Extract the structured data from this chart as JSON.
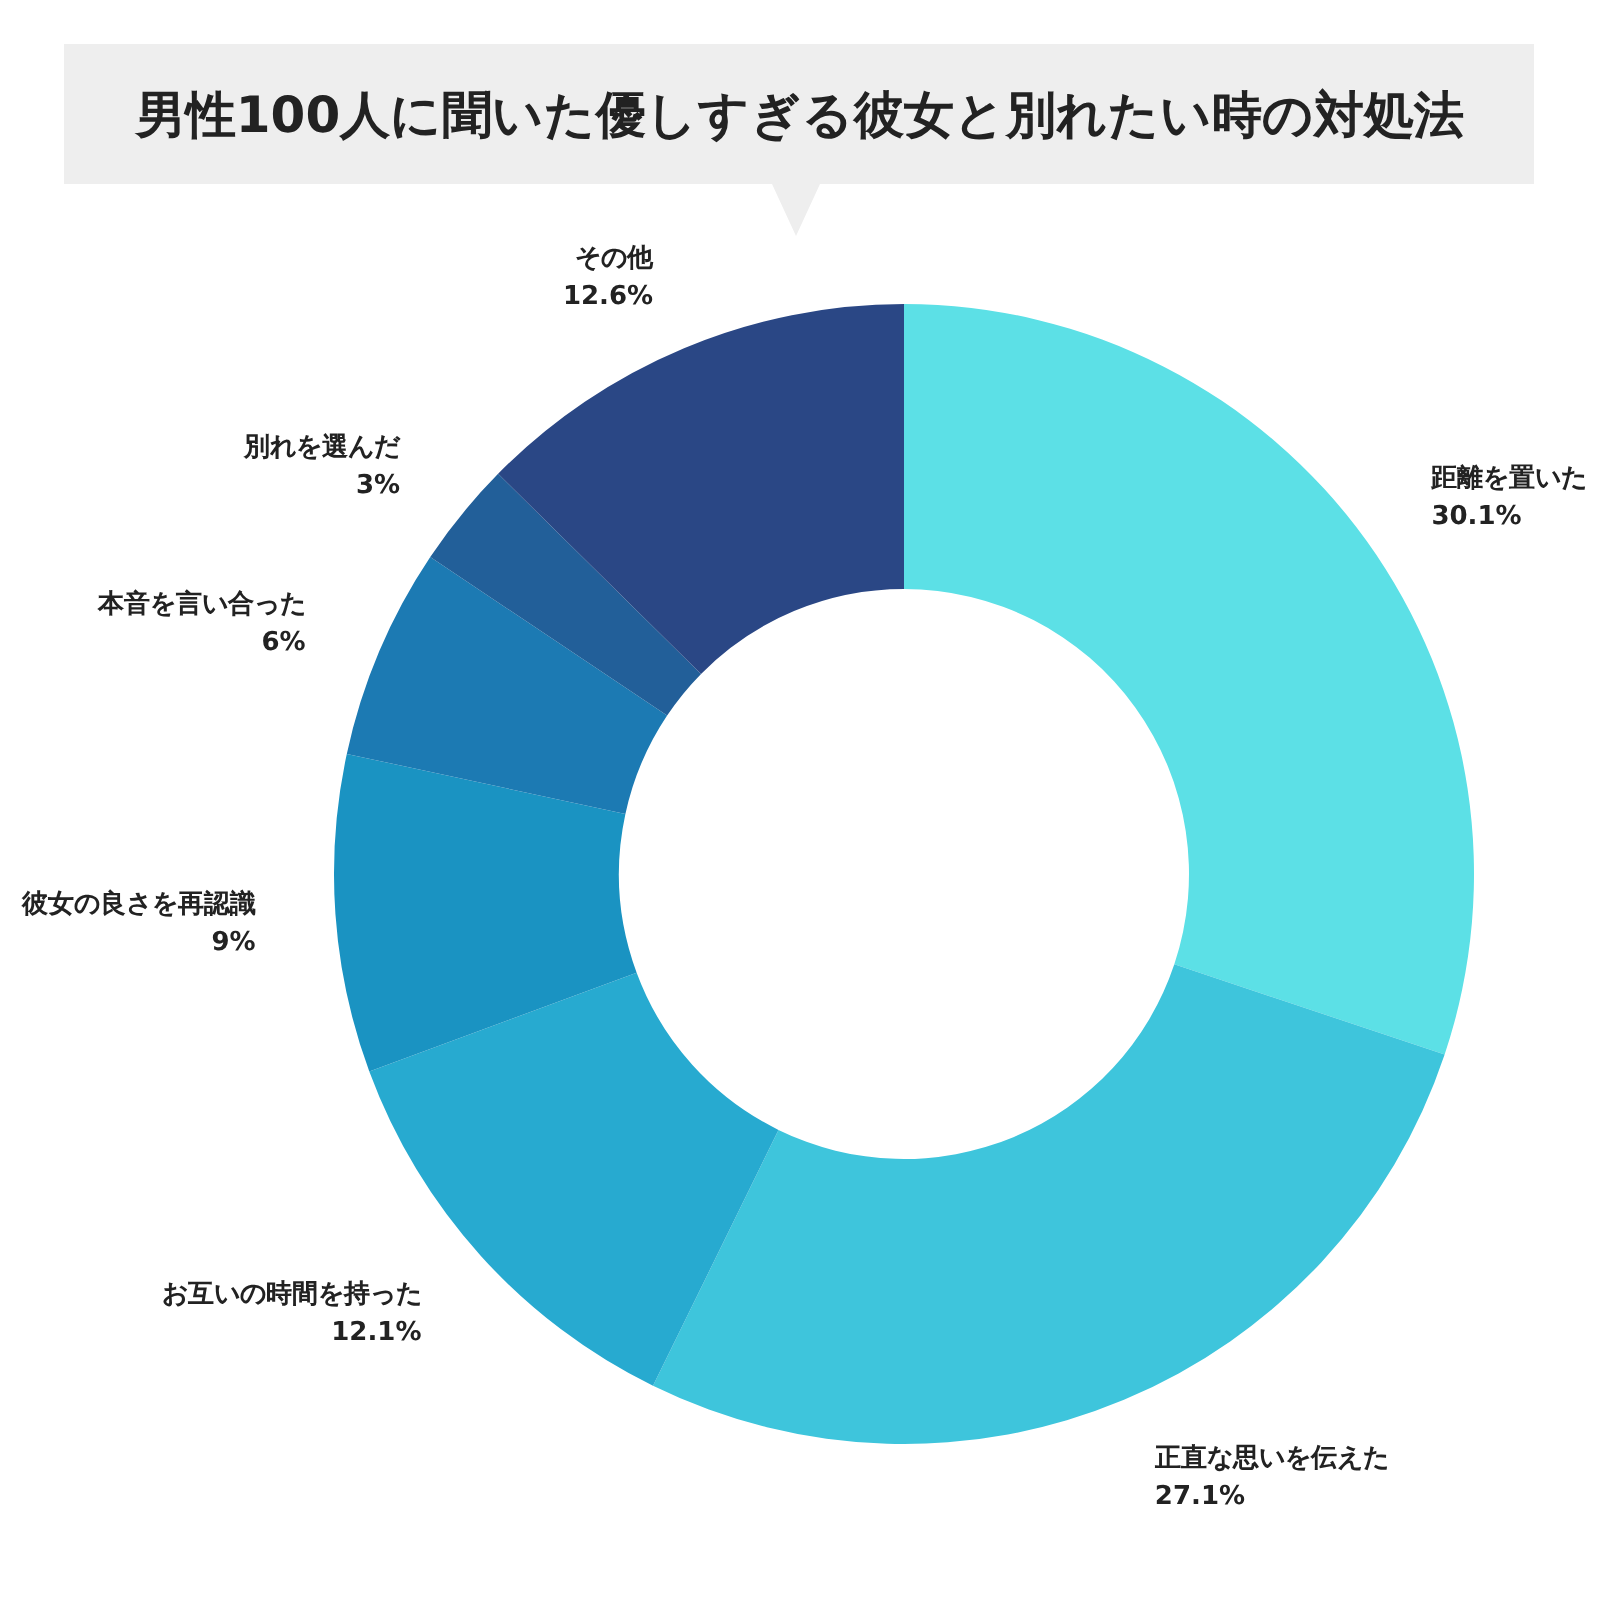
{
  "chart_data": {
    "type": "donut",
    "title": "男性100人に聞いた優しすぎる彼女と別れたい時の対処法",
    "categories": [
      "距離を置いた",
      "正直な思いを伝えた",
      "お互いの時間を持った",
      "彼女の良さを再認識",
      "本音を言い合った",
      "別れを選んだ",
      "その他"
    ],
    "values": [
      30.1,
      27.1,
      12.1,
      9,
      6,
      3,
      12.6
    ],
    "value_labels": [
      "30.1%",
      "27.1%",
      "12.1%",
      "9%",
      "6%",
      "3%",
      "12.6%"
    ],
    "colors": [
      "#5ce0e6",
      "#3ec5dc",
      "#27aad0",
      "#1a93c2",
      "#1c7ab3",
      "#225f99",
      "#2a4785"
    ],
    "legend": false
  }
}
